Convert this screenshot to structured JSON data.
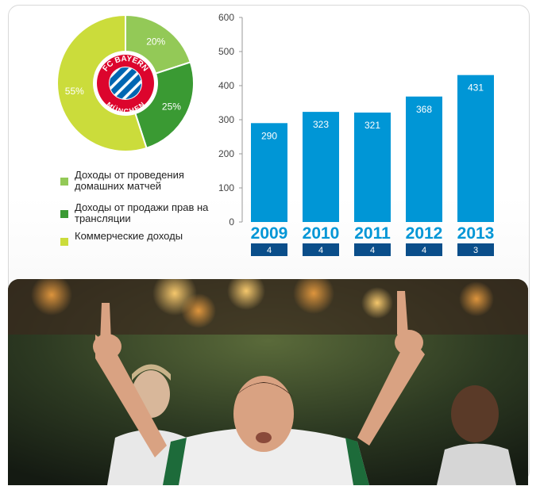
{
  "chart_data": [
    {
      "type": "pie",
      "slices": [
        {
          "label": "Доходы от проведения домашних матчей",
          "value": 20,
          "label_text": "20%",
          "color": "#93c957"
        },
        {
          "label": "Доходы от продажи прав на трансляции",
          "value": 25,
          "label_text": "25%",
          "color": "#3a9a33"
        },
        {
          "label": "Коммерческие доходы",
          "value": 55,
          "label_text": "55%",
          "color": "#cbdc3b"
        }
      ],
      "center_logo": {
        "text_top": "FC BAYERN",
        "text_bottom": "MÜNCHEN"
      }
    },
    {
      "type": "bar",
      "categories": [
        "2009",
        "2010",
        "2011",
        "2012",
        "2013"
      ],
      "values": [
        290,
        323,
        321,
        368,
        431
      ],
      "value_labels": [
        "290",
        "323",
        "321",
        "368",
        "431"
      ],
      "badges": [
        "4",
        "4",
        "4",
        "4",
        "3"
      ],
      "ylim": [
        0,
        600
      ],
      "yticks": [
        "0",
        "100",
        "200",
        "300",
        "400",
        "500",
        "600"
      ],
      "bar_color": "#0096d6",
      "badge_color": "#0a4e8a"
    }
  ]
}
